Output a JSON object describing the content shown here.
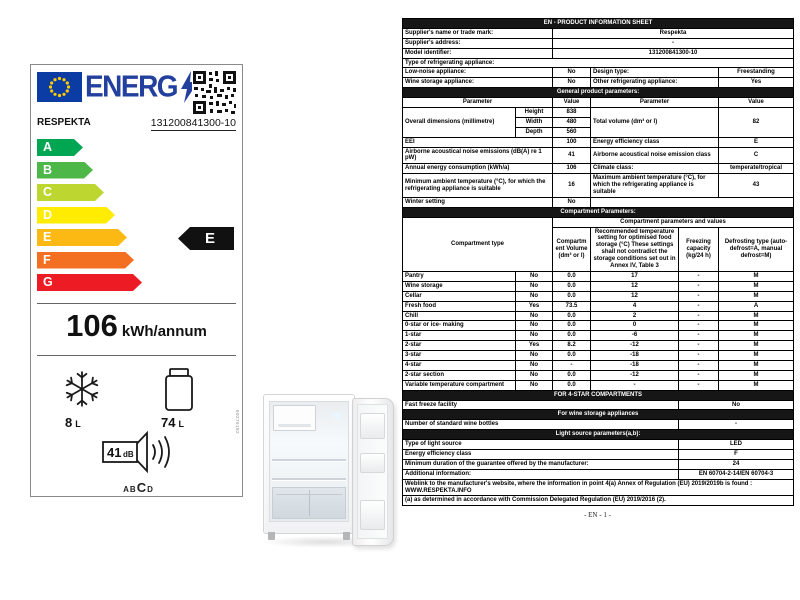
{
  "energy_label": {
    "logo_text": "ENERG",
    "brand": "RESPEKTA",
    "model": "131200841300-10",
    "classes": [
      {
        "letter": "A",
        "color": "#00a651",
        "width": 46
      },
      {
        "letter": "B",
        "color": "#4db848",
        "width": 56
      },
      {
        "letter": "C",
        "color": "#bed630",
        "width": 67
      },
      {
        "letter": "D",
        "color": "#ffec00",
        "width": 78
      },
      {
        "letter": "E",
        "color": "#fdb913",
        "width": 90
      },
      {
        "letter": "F",
        "color": "#f36f21",
        "width": 97
      },
      {
        "letter": "G",
        "color": "#ed1c24",
        "width": 105
      }
    ],
    "rating": "E",
    "consumption_value": "106",
    "consumption_unit": "kWh/annum",
    "freezer_volume": "8",
    "freezer_unit": "L",
    "fridge_volume": "74",
    "fridge_unit": "L",
    "noise_value": "41",
    "noise_unit": "dB",
    "noise_scale_prefix": "AB",
    "noise_class": "C",
    "noise_scale_suffix": "D",
    "side_code": "60276182"
  },
  "sheet": {
    "footer": "- EN - 1 -",
    "rows": [
      {
        "cells": [
          {
            "t": "EN - PRODUCT INFORMATION SHEET",
            "cs": 6,
            "cls": "sec"
          }
        ]
      },
      {
        "cells": [
          {
            "t": "Supplier's name or trade mark:",
            "cs": 2,
            "cls": "lbl"
          },
          {
            "t": "Respekta",
            "cs": 4,
            "cls": "val"
          }
        ]
      },
      {
        "cells": [
          {
            "t": "Supplier's address:",
            "cs": 2,
            "cls": "lbl"
          },
          {
            "t": "-",
            "cs": 4,
            "cls": "val"
          }
        ]
      },
      {
        "cells": [
          {
            "t": "Model identifier:",
            "cs": 2,
            "cls": "lbl"
          },
          {
            "t": "131200841300-10",
            "cs": 4,
            "cls": "val"
          }
        ]
      },
      {
        "cells": [
          {
            "t": "Type of refrigerating appliance:",
            "cs": 6,
            "cls": "lbl"
          }
        ]
      },
      {
        "cells": [
          {
            "t": "Low-noise appliance:",
            "cs": 2,
            "cls": "lbl"
          },
          {
            "t": "No",
            "cls": "val"
          },
          {
            "t": "Design type:",
            "cs": 2,
            "cls": "lbl"
          },
          {
            "t": "Freestanding",
            "cls": "val"
          }
        ]
      },
      {
        "cells": [
          {
            "t": "Wine storage appliance:",
            "cs": 2,
            "cls": "lbl"
          },
          {
            "t": "No",
            "cls": "val"
          },
          {
            "t": "Other refrigerating appliance:",
            "cs": 2,
            "cls": "lbl"
          },
          {
            "t": "Yes",
            "cls": "val"
          }
        ]
      },
      {
        "cells": [
          {
            "t": "General product parameters:",
            "cs": 6,
            "cls": "sec"
          }
        ]
      },
      {
        "cells": [
          {
            "t": "Parameter",
            "cs": 2,
            "cls": "hdr"
          },
          {
            "t": "Value",
            "cls": "hdr"
          },
          {
            "t": "Parameter",
            "cs": 2,
            "cls": "hdr"
          },
          {
            "t": "Value",
            "cls": "hdr"
          }
        ]
      },
      {
        "cells": [
          {
            "t": "Overall dimensions (millimetre)",
            "rs": 3,
            "cls": "lbl"
          },
          {
            "t": "Height",
            "cls": "val"
          },
          {
            "t": "838",
            "cls": "val"
          },
          {
            "t": "Total volume (dm³ or l)",
            "cs": 2,
            "rs": 3,
            "cls": "lbl"
          },
          {
            "t": "82",
            "rs": 3,
            "cls": "val"
          }
        ]
      },
      {
        "cells": [
          {
            "t": "Width",
            "cls": "val"
          },
          {
            "t": "480",
            "cls": "val"
          }
        ]
      },
      {
        "cells": [
          {
            "t": "Depth",
            "cls": "val"
          },
          {
            "t": "560",
            "cls": "val"
          }
        ]
      },
      {
        "cells": [
          {
            "t": "EEI",
            "cs": 2,
            "cls": "lbl"
          },
          {
            "t": "100",
            "cls": "val"
          },
          {
            "t": "Energy efficiency class",
            "cs": 2,
            "cls": "lbl"
          },
          {
            "t": "E",
            "cls": "val"
          }
        ]
      },
      {
        "cells": [
          {
            "t": "Airborne acoustical noise emissions (dB(A) re 1 pW)",
            "cs": 2,
            "cls": "lbl"
          },
          {
            "t": "41",
            "cls": "val"
          },
          {
            "t": "Airborne acoustical noise emission class",
            "cs": 2,
            "cls": "lbl"
          },
          {
            "t": "C",
            "cls": "val"
          }
        ]
      },
      {
        "cells": [
          {
            "t": "Annual energy consumption (kWh/a)",
            "cs": 2,
            "cls": "lbl"
          },
          {
            "t": "106",
            "cls": "val"
          },
          {
            "t": "Climate class:",
            "cs": 2,
            "cls": "lbl"
          },
          {
            "t": "temperate/tropical",
            "cls": "val"
          }
        ]
      },
      {
        "cells": [
          {
            "t": "Minimum ambient temperature (°C), for which the refrigerating appliance is suitable",
            "cs": 2,
            "cls": "lbl"
          },
          {
            "t": "16",
            "cls": "val"
          },
          {
            "t": "Maximum ambient temperature (°C), for which the refrigerating appliance is suitable",
            "cs": 2,
            "cls": "lbl"
          },
          {
            "t": "43",
            "cls": "val"
          }
        ]
      },
      {
        "cells": [
          {
            "t": "Winter setting",
            "cs": 2,
            "cls": "lbl"
          },
          {
            "t": "No",
            "cls": "val"
          },
          {
            "t": "",
            "cs": 3,
            "cls": "val"
          }
        ]
      },
      {
        "cells": [
          {
            "t": "Compartment Parameters:",
            "cs": 6,
            "cls": "sec"
          }
        ]
      },
      {
        "cells": [
          {
            "t": "Compartment type",
            "cs": 2,
            "rs": 2,
            "cls": "hdr"
          },
          {
            "t": "Compartment parameters and values",
            "cs": 4,
            "cls": "hdr"
          }
        ]
      },
      {
        "cells": [
          {
            "t": "Compartment Volume (dm³ or l)",
            "cls": "hdr"
          },
          {
            "t": "Recommended temperature setting for optimised food storage (°C) These settings shall not contradict the storage conditions set out in Annex IV, Table 3",
            "cls": "hdr"
          },
          {
            "t": "Freezing capacity (kg/24 h)",
            "cls": "hdr"
          },
          {
            "t": "Defrosting type (auto-defrost=A, manual defrost=M)",
            "cls": "hdr"
          }
        ]
      },
      {
        "cells": [
          {
            "t": "Pantry",
            "cls": "lbl"
          },
          {
            "t": "No",
            "cls": "val"
          },
          {
            "t": "0.0",
            "cls": "val"
          },
          {
            "t": "17",
            "cls": "val"
          },
          {
            "t": "-",
            "cls": "val"
          },
          {
            "t": "M",
            "cls": "val"
          }
        ]
      },
      {
        "cells": [
          {
            "t": "Wine storage",
            "cls": "lbl"
          },
          {
            "t": "No",
            "cls": "val"
          },
          {
            "t": "0.0",
            "cls": "val"
          },
          {
            "t": "12",
            "cls": "val"
          },
          {
            "t": "-",
            "cls": "val"
          },
          {
            "t": "M",
            "cls": "val"
          }
        ]
      },
      {
        "cells": [
          {
            "t": "Cellar",
            "cls": "lbl"
          },
          {
            "t": "No",
            "cls": "val"
          },
          {
            "t": "0.0",
            "cls": "val"
          },
          {
            "t": "12",
            "cls": "val"
          },
          {
            "t": "-",
            "cls": "val"
          },
          {
            "t": "M",
            "cls": "val"
          }
        ]
      },
      {
        "cells": [
          {
            "t": "Fresh food",
            "cls": "lbl"
          },
          {
            "t": "Yes",
            "cls": "val"
          },
          {
            "t": "73.5",
            "cls": "val"
          },
          {
            "t": "4",
            "cls": "val"
          },
          {
            "t": "-",
            "cls": "val"
          },
          {
            "t": "A",
            "cls": "val"
          }
        ]
      },
      {
        "cells": [
          {
            "t": "Chill",
            "cls": "lbl"
          },
          {
            "t": "No",
            "cls": "val"
          },
          {
            "t": "0.0",
            "cls": "val"
          },
          {
            "t": "2",
            "cls": "val"
          },
          {
            "t": "-",
            "cls": "val"
          },
          {
            "t": "M",
            "cls": "val"
          }
        ]
      },
      {
        "cells": [
          {
            "t": "0-star or ice- making",
            "cls": "lbl"
          },
          {
            "t": "No",
            "cls": "val"
          },
          {
            "t": "0.0",
            "cls": "val"
          },
          {
            "t": "0",
            "cls": "val"
          },
          {
            "t": "-",
            "cls": "val"
          },
          {
            "t": "M",
            "cls": "val"
          }
        ]
      },
      {
        "cells": [
          {
            "t": "1-star",
            "cls": "lbl"
          },
          {
            "t": "No",
            "cls": "val"
          },
          {
            "t": "0.0",
            "cls": "val"
          },
          {
            "t": "-6",
            "cls": "val"
          },
          {
            "t": "-",
            "cls": "val"
          },
          {
            "t": "M",
            "cls": "val"
          }
        ]
      },
      {
        "cells": [
          {
            "t": "2-star",
            "cls": "lbl"
          },
          {
            "t": "Yes",
            "cls": "val"
          },
          {
            "t": "8.2",
            "cls": "val"
          },
          {
            "t": "-12",
            "cls": "val"
          },
          {
            "t": "-",
            "cls": "val"
          },
          {
            "t": "M",
            "cls": "val"
          }
        ]
      },
      {
        "cells": [
          {
            "t": "3-star",
            "cls": "lbl"
          },
          {
            "t": "No",
            "cls": "val"
          },
          {
            "t": "0.0",
            "cls": "val"
          },
          {
            "t": "-18",
            "cls": "val"
          },
          {
            "t": "-",
            "cls": "val"
          },
          {
            "t": "M",
            "cls": "val"
          }
        ]
      },
      {
        "cells": [
          {
            "t": "4-star",
            "cls": "lbl"
          },
          {
            "t": "No",
            "cls": "val"
          },
          {
            "t": "-",
            "cls": "val"
          },
          {
            "t": "-18",
            "cls": "val"
          },
          {
            "t": "-",
            "cls": "val"
          },
          {
            "t": "M",
            "cls": "val"
          }
        ]
      },
      {
        "cells": [
          {
            "t": "2-star section",
            "cls": "lbl"
          },
          {
            "t": "No",
            "cls": "val"
          },
          {
            "t": "0.0",
            "cls": "val"
          },
          {
            "t": "-12",
            "cls": "val"
          },
          {
            "t": "-",
            "cls": "val"
          },
          {
            "t": "M",
            "cls": "val"
          }
        ]
      },
      {
        "cells": [
          {
            "t": "Variable temperature compartment",
            "cls": "lbl"
          },
          {
            "t": "No",
            "cls": "val"
          },
          {
            "t": "0.0",
            "cls": "val"
          },
          {
            "t": "-",
            "cls": "val"
          },
          {
            "t": "-",
            "cls": "val"
          },
          {
            "t": "M",
            "cls": "val"
          }
        ]
      },
      {
        "cells": [
          {
            "t": "FOR 4-STAR COMPARTMENTS",
            "cs": 6,
            "cls": "sec"
          }
        ]
      },
      {
        "cells": [
          {
            "t": "Fast freeze facility",
            "cs": 4,
            "cls": "lbl"
          },
          {
            "t": "No",
            "cs": 2,
            "cls": "val"
          }
        ]
      },
      {
        "cells": [
          {
            "t": "For wine storage appliances",
            "cs": 6,
            "cls": "sec"
          }
        ]
      },
      {
        "cells": [
          {
            "t": "Number of standard wine bottles",
            "cs": 4,
            "cls": "lbl"
          },
          {
            "t": "-",
            "cs": 2,
            "cls": "val"
          }
        ]
      },
      {
        "cells": [
          {
            "t": "Light source parameters(a,b):",
            "cs": 6,
            "cls": "sec"
          }
        ]
      },
      {
        "cells": [
          {
            "t": "Type of light source",
            "cs": 4,
            "cls": "lbl"
          },
          {
            "t": "LED",
            "cs": 2,
            "cls": "val"
          }
        ]
      },
      {
        "cells": [
          {
            "t": "Energy efficiency class",
            "cs": 4,
            "cls": "lbl"
          },
          {
            "t": "F",
            "cs": 2,
            "cls": "val"
          }
        ]
      },
      {
        "cells": [
          {
            "t": "Minimum duration of the guarantee offered by the manufacturer:",
            "cs": 4,
            "cls": "lbl"
          },
          {
            "t": "24",
            "cs": 2,
            "cls": "val"
          }
        ]
      },
      {
        "cells": [
          {
            "t": "Additional information:",
            "cs": 4,
            "cls": "lbl"
          },
          {
            "t": "EN 60704-2-14/EN 60704-3",
            "cs": 2,
            "cls": "val"
          }
        ]
      },
      {
        "cells": [
          {
            "t": "Weblink to the manufacturer's website, where the information in point 4(a) Annex of Regulation (EU) 2019/2019b is found : WWW.RESPEKTA.INFO",
            "cs": 6,
            "cls": "lbl"
          }
        ]
      },
      {
        "cells": [
          {
            "t": "(a) as determined in accordance with Commission Delegated Regulation (EU) 2019/2016 (2).",
            "cs": 6,
            "cls": "lbl"
          }
        ]
      }
    ]
  }
}
